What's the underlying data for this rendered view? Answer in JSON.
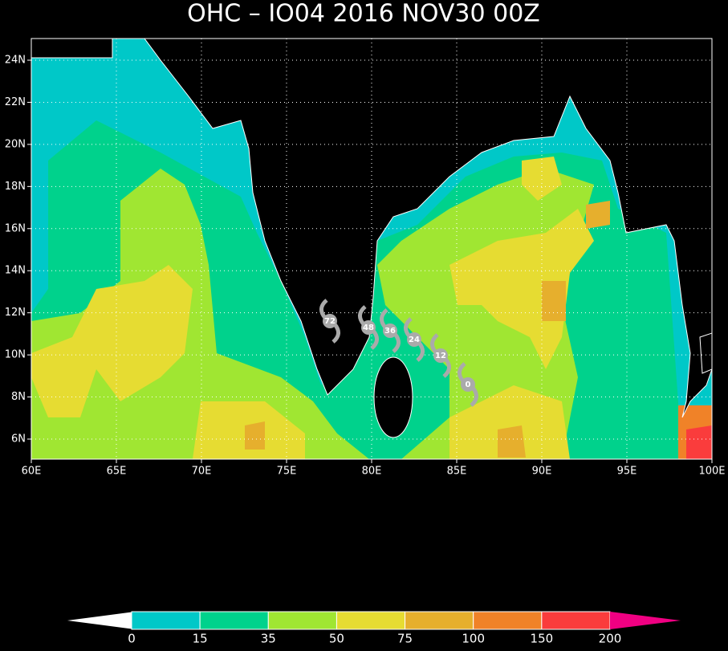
{
  "title": "OHC – IO04 2016 NOV30 00Z",
  "map": {
    "x_labels": [
      "60E",
      "65E",
      "70E",
      "75E",
      "80E",
      "85E",
      "90E",
      "95E",
      "100E"
    ],
    "y_labels": [
      "24N",
      "22N",
      "20N",
      "18N",
      "16N",
      "14N",
      "12N",
      "10N",
      "8N",
      "6N"
    ]
  },
  "track": {
    "labels": [
      "72",
      "48",
      "36",
      "24",
      "12",
      "0"
    ]
  },
  "colorbar": {
    "labels": [
      "0",
      "15",
      "35",
      "50",
      "75",
      "100",
      "150",
      "200"
    ],
    "colors": [
      "#00c8c8",
      "#00d28c",
      "#a0e632",
      "#e6dc32",
      "#e6af2d",
      "#f08228",
      "#fa3c3c"
    ],
    "under_color": "#ffffff",
    "over_color": "#f00082"
  }
}
